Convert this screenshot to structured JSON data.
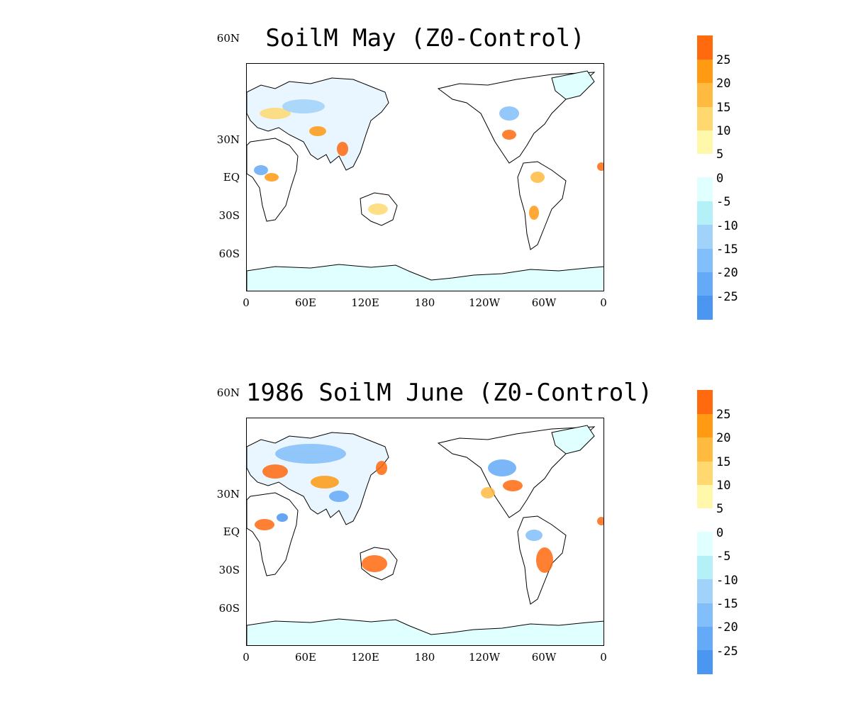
{
  "panels": [
    {
      "title": "SoilM May (Z0-Control)",
      "lat_labels": [
        "60N",
        "30N",
        "EQ",
        "30S",
        "60S"
      ],
      "lon_labels": [
        "0",
        "60E",
        "120E",
        "180",
        "120W",
        "60W",
        "0"
      ]
    },
    {
      "title": "1986 SoilM June (Z0-Control)",
      "lat_labels": [
        "60N",
        "30N",
        "EQ",
        "30S",
        "60S"
      ],
      "lon_labels": [
        "0",
        "60E",
        "120E",
        "180",
        "120W",
        "60W",
        "0"
      ]
    }
  ],
  "colorbar": {
    "labels": [
      "25",
      "20",
      "15",
      "10",
      "5",
      "0",
      "-5",
      "-10",
      "-15",
      "-20",
      "-25"
    ],
    "colors": {
      "orange_dark": "#ff6a0f",
      "orange": "#ff9a12",
      "orange_light": "#ffba40",
      "yellow": "#ffd970",
      "yellow_light": "#fff7aa",
      "cyan_lightest": "#e0ffff",
      "cyan_light": "#b4f0f8",
      "blue_light": "#a0d2fa",
      "blue_mid": "#82befa",
      "blue": "#64aaf7",
      "blue_dark": "#4b96f0"
    }
  }
}
